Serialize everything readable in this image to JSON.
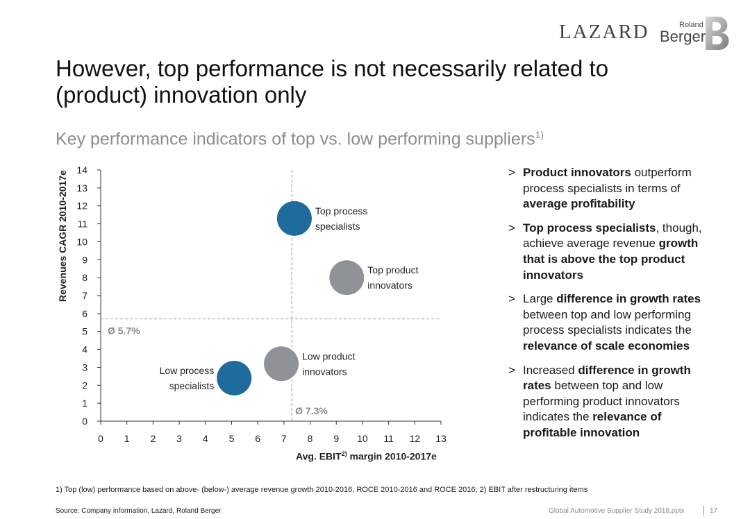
{
  "brand": {
    "lazard": "LAZARD",
    "rb_small": "Roland",
    "rb_large": "Berger",
    "accent_blue": "#1f6b9c",
    "accent_grey": "#8f9296"
  },
  "title": "However, top performance is not necessarily related to (product) innovation only",
  "subtitle": "Key performance indicators of top vs. low performing suppliers",
  "subtitle_sup": "1)",
  "chart_data": {
    "type": "scatter",
    "xlabel_main": "Avg. EBIT",
    "xlabel_sup": "2)",
    "xlabel_rest": " margin 2010-2017e",
    "ylabel": "Revenues CAGR 2010-2017e",
    "xlim": [
      0,
      13
    ],
    "ylim": [
      0,
      14
    ],
    "x_ticks": [
      0,
      1,
      2,
      3,
      4,
      5,
      6,
      7,
      8,
      9,
      10,
      11,
      12,
      13
    ],
    "y_ticks": [
      0,
      1,
      2,
      3,
      4,
      5,
      6,
      7,
      8,
      9,
      10,
      11,
      12,
      13,
      14
    ],
    "avg_x": 7.3,
    "avg_y": 5.7,
    "avg_x_label": "Ø 7.3%",
    "avg_y_label": "Ø 5.7%",
    "grid": false,
    "points": [
      {
        "name": "Top process specialists",
        "label_lines": [
          "Top process",
          "specialists"
        ],
        "x": 7.4,
        "y": 11.3,
        "color": "#1f6b9c",
        "label_side": "right"
      },
      {
        "name": "Top product innovators",
        "label_lines": [
          "Top product",
          "innovators"
        ],
        "x": 9.4,
        "y": 8.0,
        "color": "#8f9296",
        "label_side": "right"
      },
      {
        "name": "Low product innovators",
        "label_lines": [
          "Low product",
          "innovators"
        ],
        "x": 6.9,
        "y": 3.2,
        "color": "#8f9296",
        "label_side": "right"
      },
      {
        "name": "Low process specialists",
        "label_lines": [
          "Low process",
          "specialists"
        ],
        "x": 5.1,
        "y": 2.4,
        "color": "#1f6b9c",
        "label_side": "left"
      }
    ]
  },
  "bullets": [
    [
      {
        "t": "Product innovators",
        "b": true
      },
      {
        "t": " outperform process specialists in terms of ",
        "b": false
      },
      {
        "t": "average profitability",
        "b": true
      }
    ],
    [
      {
        "t": "Top process specialists",
        "b": true
      },
      {
        "t": ", though, achieve average revenue ",
        "b": false
      },
      {
        "t": "growth that is above the top product innovators",
        "b": true
      }
    ],
    [
      {
        "t": "Large ",
        "b": false
      },
      {
        "t": "difference in growth rates",
        "b": true
      },
      {
        "t": " between top and low performing process specialists indicates the ",
        "b": false
      },
      {
        "t": "relevance of scale economies",
        "b": true
      }
    ],
    [
      {
        "t": "Increased ",
        "b": false
      },
      {
        "t": "difference in growth rates",
        "b": true
      },
      {
        "t": " between top and low performing product innovators indicates the ",
        "b": false
      },
      {
        "t": "relevance of profitable innovation",
        "b": true
      }
    ]
  ],
  "bullet_marker": ">",
  "footnote": "1) Top (low) performance based on above- (below-) average revenue growth 2010-2016, ROCE 2010-2016 and ROCE 2016; 2) EBIT after restructuring items",
  "source": "Source: Company information, Lazard, Roland Berger",
  "filename": "Global Automotive Supplier Study 2018.pptx",
  "page_number": "17"
}
